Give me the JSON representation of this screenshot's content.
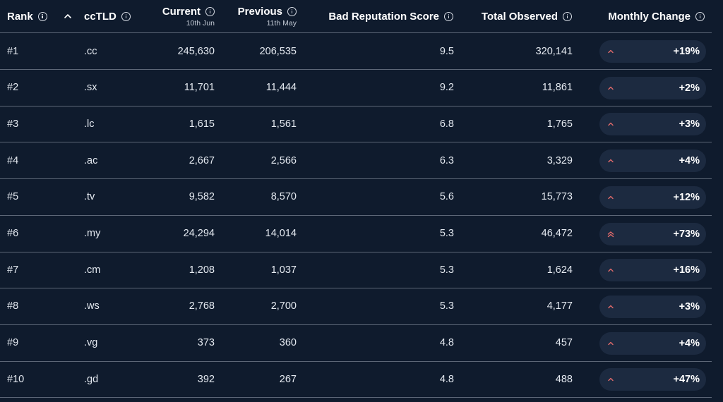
{
  "header": {
    "rank": "Rank",
    "cctld": "ccTLD",
    "current": "Current",
    "current_date": "10th Jun",
    "previous": "Previous",
    "previous_date": "11th May",
    "bad_reputation": "Bad Reputation Score",
    "total_observed": "Total Observed",
    "monthly_change": "Monthly Change"
  },
  "colors": {
    "background": "#0f1b2d",
    "pill": "#1c2a40",
    "arrow": "#e36b6b",
    "divider": "#5d6777"
  },
  "rows": [
    {
      "rank": "#1",
      "tld": ".cc",
      "current": "245,630",
      "previous": "206,535",
      "score": "9.5",
      "total": "320,141",
      "change": "+19%",
      "trend_icon": "chevron-up-icon"
    },
    {
      "rank": "#2",
      "tld": ".sx",
      "current": "11,701",
      "previous": "11,444",
      "score": "9.2",
      "total": "11,861",
      "change": "+2%",
      "trend_icon": "chevron-up-icon"
    },
    {
      "rank": "#3",
      "tld": ".lc",
      "current": "1,615",
      "previous": "1,561",
      "score": "6.8",
      "total": "1,765",
      "change": "+3%",
      "trend_icon": "chevron-up-icon"
    },
    {
      "rank": "#4",
      "tld": ".ac",
      "current": "2,667",
      "previous": "2,566",
      "score": "6.3",
      "total": "3,329",
      "change": "+4%",
      "trend_icon": "chevron-up-icon"
    },
    {
      "rank": "#5",
      "tld": ".tv",
      "current": "9,582",
      "previous": "8,570",
      "score": "5.6",
      "total": "15,773",
      "change": "+12%",
      "trend_icon": "chevron-up-icon"
    },
    {
      "rank": "#6",
      "tld": ".my",
      "current": "24,294",
      "previous": "14,014",
      "score": "5.3",
      "total": "46,472",
      "change": "+73%",
      "trend_icon": "double-chevron-up-icon"
    },
    {
      "rank": "#7",
      "tld": ".cm",
      "current": "1,208",
      "previous": "1,037",
      "score": "5.3",
      "total": "1,624",
      "change": "+16%",
      "trend_icon": "chevron-up-icon"
    },
    {
      "rank": "#8",
      "tld": ".ws",
      "current": "2,768",
      "previous": "2,700",
      "score": "5.3",
      "total": "4,177",
      "change": "+3%",
      "trend_icon": "chevron-up-icon"
    },
    {
      "rank": "#9",
      "tld": ".vg",
      "current": "373",
      "previous": "360",
      "score": "4.8",
      "total": "457",
      "change": "+4%",
      "trend_icon": "chevron-up-icon"
    },
    {
      "rank": "#10",
      "tld": ".gd",
      "current": "392",
      "previous": "267",
      "score": "4.8",
      "total": "488",
      "change": "+47%",
      "trend_icon": "chevron-up-icon"
    }
  ]
}
